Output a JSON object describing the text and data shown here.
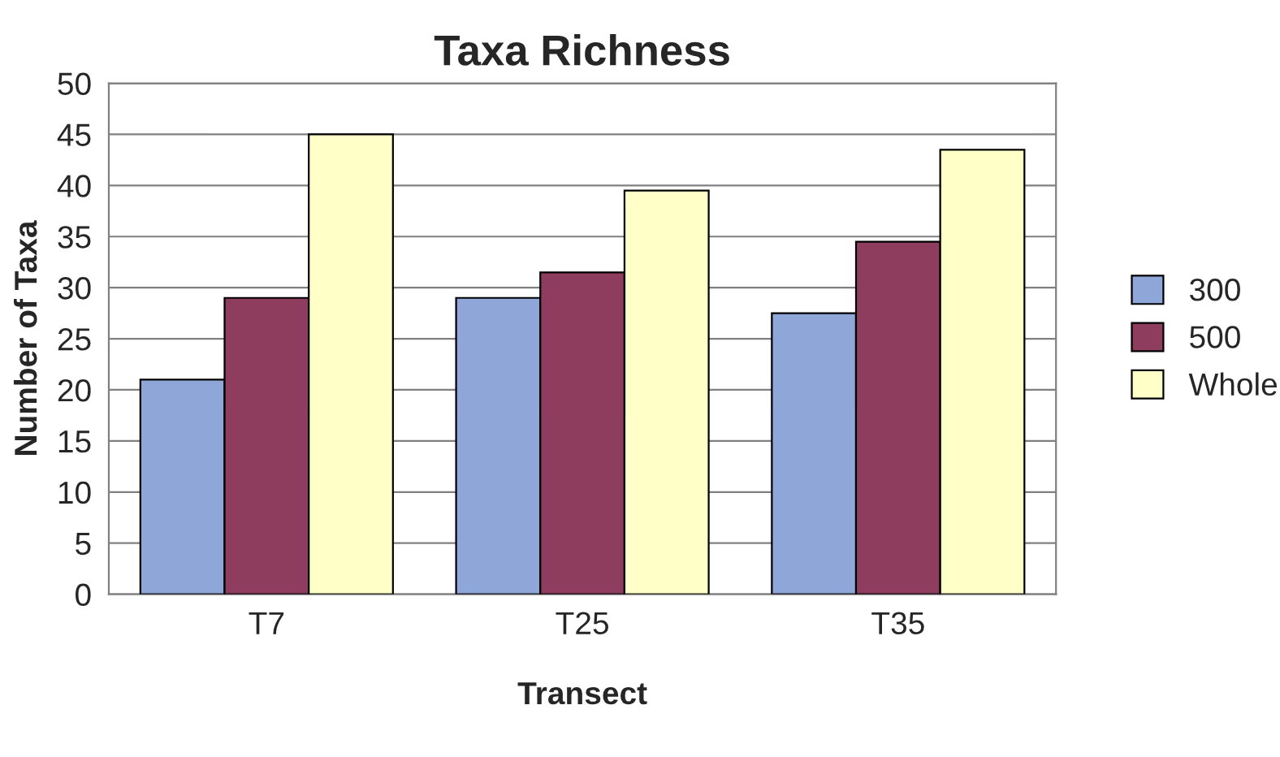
{
  "chart_data": {
    "type": "bar",
    "title": "Taxa Richness",
    "xlabel": "Transect",
    "ylabel": "Number of Taxa",
    "categories": [
      "T7",
      "T25",
      "T35"
    ],
    "series": [
      {
        "name": "300",
        "color": "#8ea6d8",
        "values": [
          21,
          29,
          27.5
        ]
      },
      {
        "name": "500",
        "color": "#8e3d5e",
        "values": [
          29,
          31.5,
          34.5
        ]
      },
      {
        "name": "Whole",
        "color": "#ffffc8",
        "values": [
          45,
          39.5,
          43.5
        ]
      }
    ],
    "ylim": [
      0,
      50
    ],
    "yticks": [
      0,
      5,
      10,
      15,
      20,
      25,
      30,
      35,
      40,
      45,
      50
    ],
    "grid": "y",
    "legend": "right"
  }
}
